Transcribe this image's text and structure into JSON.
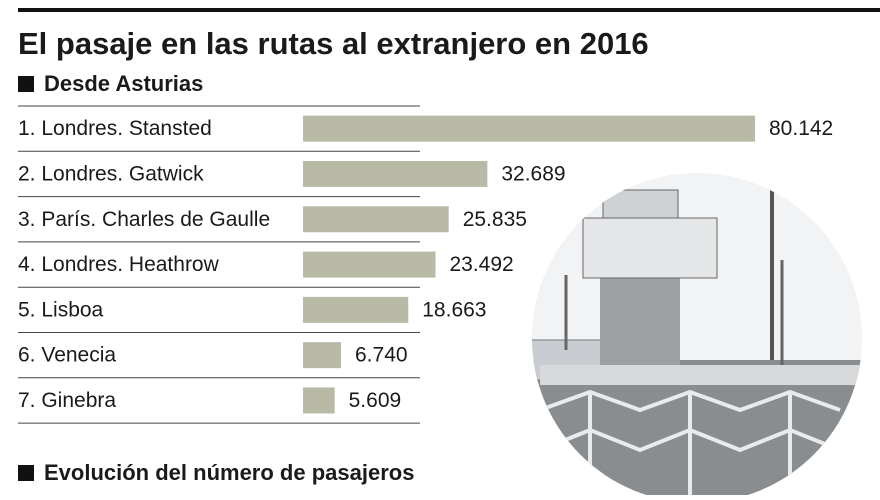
{
  "chart_data": {
    "type": "bar",
    "orientation": "horizontal",
    "title": "El pasaje en las rutas al extranjero en 2016",
    "subtitle": "Desde Asturias",
    "footer_heading": "Evolución del número de pasajeros",
    "categories": [
      "1. Londres. Stansted",
      "2. Londres. Gatwick",
      "3. París. Charles de Gaulle",
      "4. Londres. Heathrow",
      "5. Lisboa",
      "6. Venecia",
      "7. Ginebra"
    ],
    "values": [
      80142,
      32689,
      25835,
      23492,
      18663,
      6740,
      5609
    ],
    "value_labels": [
      "80.142",
      "32.689",
      "25.835",
      "23.492",
      "18.663",
      "6.740",
      "5.609"
    ],
    "color": "#b8baa6"
  }
}
